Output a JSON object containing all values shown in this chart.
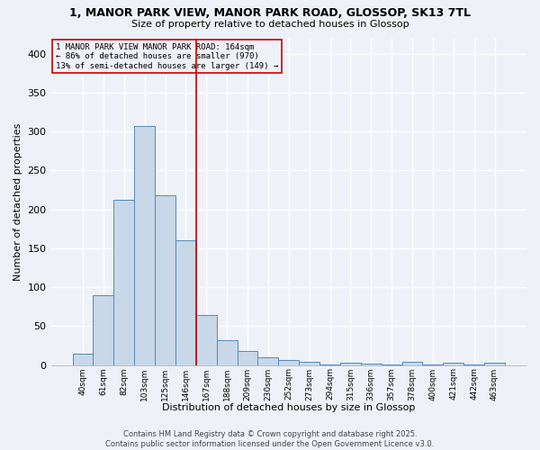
{
  "title1": "1, MANOR PARK VIEW, MANOR PARK ROAD, GLOSSOP, SK13 7TL",
  "title2": "Size of property relative to detached houses in Glossop",
  "xlabel": "Distribution of detached houses by size in Glossop",
  "ylabel": "Number of detached properties",
  "bar_labels": [
    "40sqm",
    "61sqm",
    "82sqm",
    "103sqm",
    "125sqm",
    "146sqm",
    "167sqm",
    "188sqm",
    "209sqm",
    "230sqm",
    "252sqm",
    "273sqm",
    "294sqm",
    "315sqm",
    "336sqm",
    "357sqm",
    "378sqm",
    "400sqm",
    "421sqm",
    "442sqm",
    "463sqm"
  ],
  "bar_values": [
    15,
    90,
    212,
    307,
    218,
    160,
    64,
    32,
    18,
    10,
    6,
    4,
    1,
    3,
    2,
    1,
    4,
    1,
    3,
    1,
    3
  ],
  "bar_color": "#c8d8e8",
  "bar_edge_color": "#5588bb",
  "vline_color": "#cc0000",
  "vline_pos": 5.5,
  "annotation_text": "1 MANOR PARK VIEW MANOR PARK ROAD: 164sqm\n← 86% of detached houses are smaller (970)\n13% of semi-detached houses are larger (149) →",
  "ylim": [
    0,
    420
  ],
  "yticks": [
    0,
    50,
    100,
    150,
    200,
    250,
    300,
    350,
    400
  ],
  "background_color": "#eef2f8",
  "grid_color": "#ffffff",
  "footer_text": "Contains HM Land Registry data © Crown copyright and database right 2025.\nContains public sector information licensed under the Open Government Licence v3.0."
}
